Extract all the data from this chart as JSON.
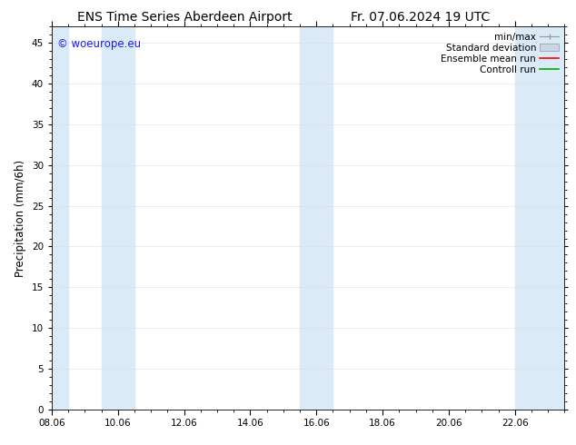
{
  "title_left": "ENS Time Series Aberdeen Airport",
  "title_right": "Fr. 07.06.2024 19 UTC",
  "ylabel": "Precipitation (mm/6h)",
  "ylim": [
    0,
    47
  ],
  "yticks": [
    0,
    5,
    10,
    15,
    20,
    25,
    30,
    35,
    40,
    45
  ],
  "xlim_start": 0.0,
  "xlim_end": 15.5,
  "xtick_labels": [
    "08.06",
    "10.06",
    "12.06",
    "14.06",
    "16.06",
    "18.06",
    "20.06",
    "22.06"
  ],
  "xtick_positions": [
    0,
    2,
    4,
    6,
    8,
    10,
    12,
    14
  ],
  "shaded_bands": [
    {
      "x_start": 0.0,
      "x_end": 0.5,
      "color": "#daeaf7"
    },
    {
      "x_start": 1.5,
      "x_end": 2.5,
      "color": "#daeaf7"
    },
    {
      "x_start": 7.5,
      "x_end": 8.5,
      "color": "#daeaf7"
    },
    {
      "x_start": 14.0,
      "x_end": 15.5,
      "color": "#daeaf7"
    }
  ],
  "watermark": "© woeurope.eu",
  "watermark_color": "#1a1aff",
  "bg_color": "#ffffff",
  "plot_bg_color": "#ffffff",
  "legend_items": [
    {
      "label": "min/max",
      "color": "#aaaaaa",
      "style": "minmax"
    },
    {
      "label": "Standard deviation",
      "color": "#c8d8e8",
      "style": "stddev"
    },
    {
      "label": "Ensemble mean run",
      "color": "#ff0000",
      "style": "line"
    },
    {
      "label": "Controll run",
      "color": "#00aa00",
      "style": "line"
    }
  ],
  "minor_tick_interval": 0.5,
  "title_fontsize": 10,
  "tick_fontsize": 7.5,
  "legend_fontsize": 7.5,
  "ylabel_fontsize": 8.5
}
